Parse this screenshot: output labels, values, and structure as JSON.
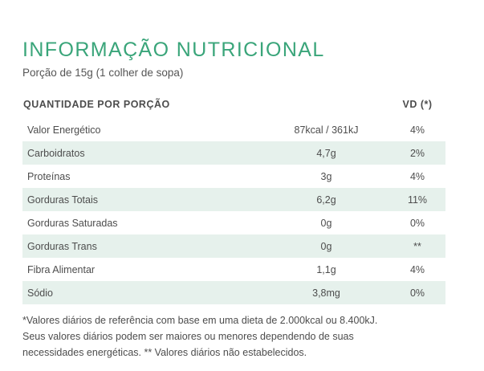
{
  "title": "INFORMAÇÃO NUTRICIONAL",
  "portion": "Porção de 15g (1 colher de sopa)",
  "table": {
    "header_left": "QUANTIDADE POR PORÇÃO",
    "header_right": "VD (*)",
    "rows": [
      {
        "name": "Valor Energético",
        "amount": "87kcal / 361kJ",
        "vd": "4%"
      },
      {
        "name": "Carboidratos",
        "amount": "4,7g",
        "vd": "2%"
      },
      {
        "name": "Proteínas",
        "amount": "3g",
        "vd": "4%"
      },
      {
        "name": "Gorduras Totais",
        "amount": "6,2g",
        "vd": "11%"
      },
      {
        "name": "Gorduras Saturadas",
        "amount": "0g",
        "vd": "0%"
      },
      {
        "name": "Gorduras Trans",
        "amount": "0g",
        "vd": "**"
      },
      {
        "name": "Fibra Alimentar",
        "amount": "1,1g",
        "vd": "4%"
      },
      {
        "name": "Sódio",
        "amount": "3,8mg",
        "vd": "0%"
      }
    ]
  },
  "footnote": {
    "line1": "*Valores diários de referência com base em uma dieta de 2.000kcal ou 8.400kJ.",
    "line2": "Seus valores diários podem ser maiores ou menores dependendo de suas",
    "line3": "necessidades energéticas. ** Valores diários não estabelecidos."
  },
  "colors": {
    "title_green": "#3aa57a",
    "row_shade": "#e6f1ec"
  }
}
